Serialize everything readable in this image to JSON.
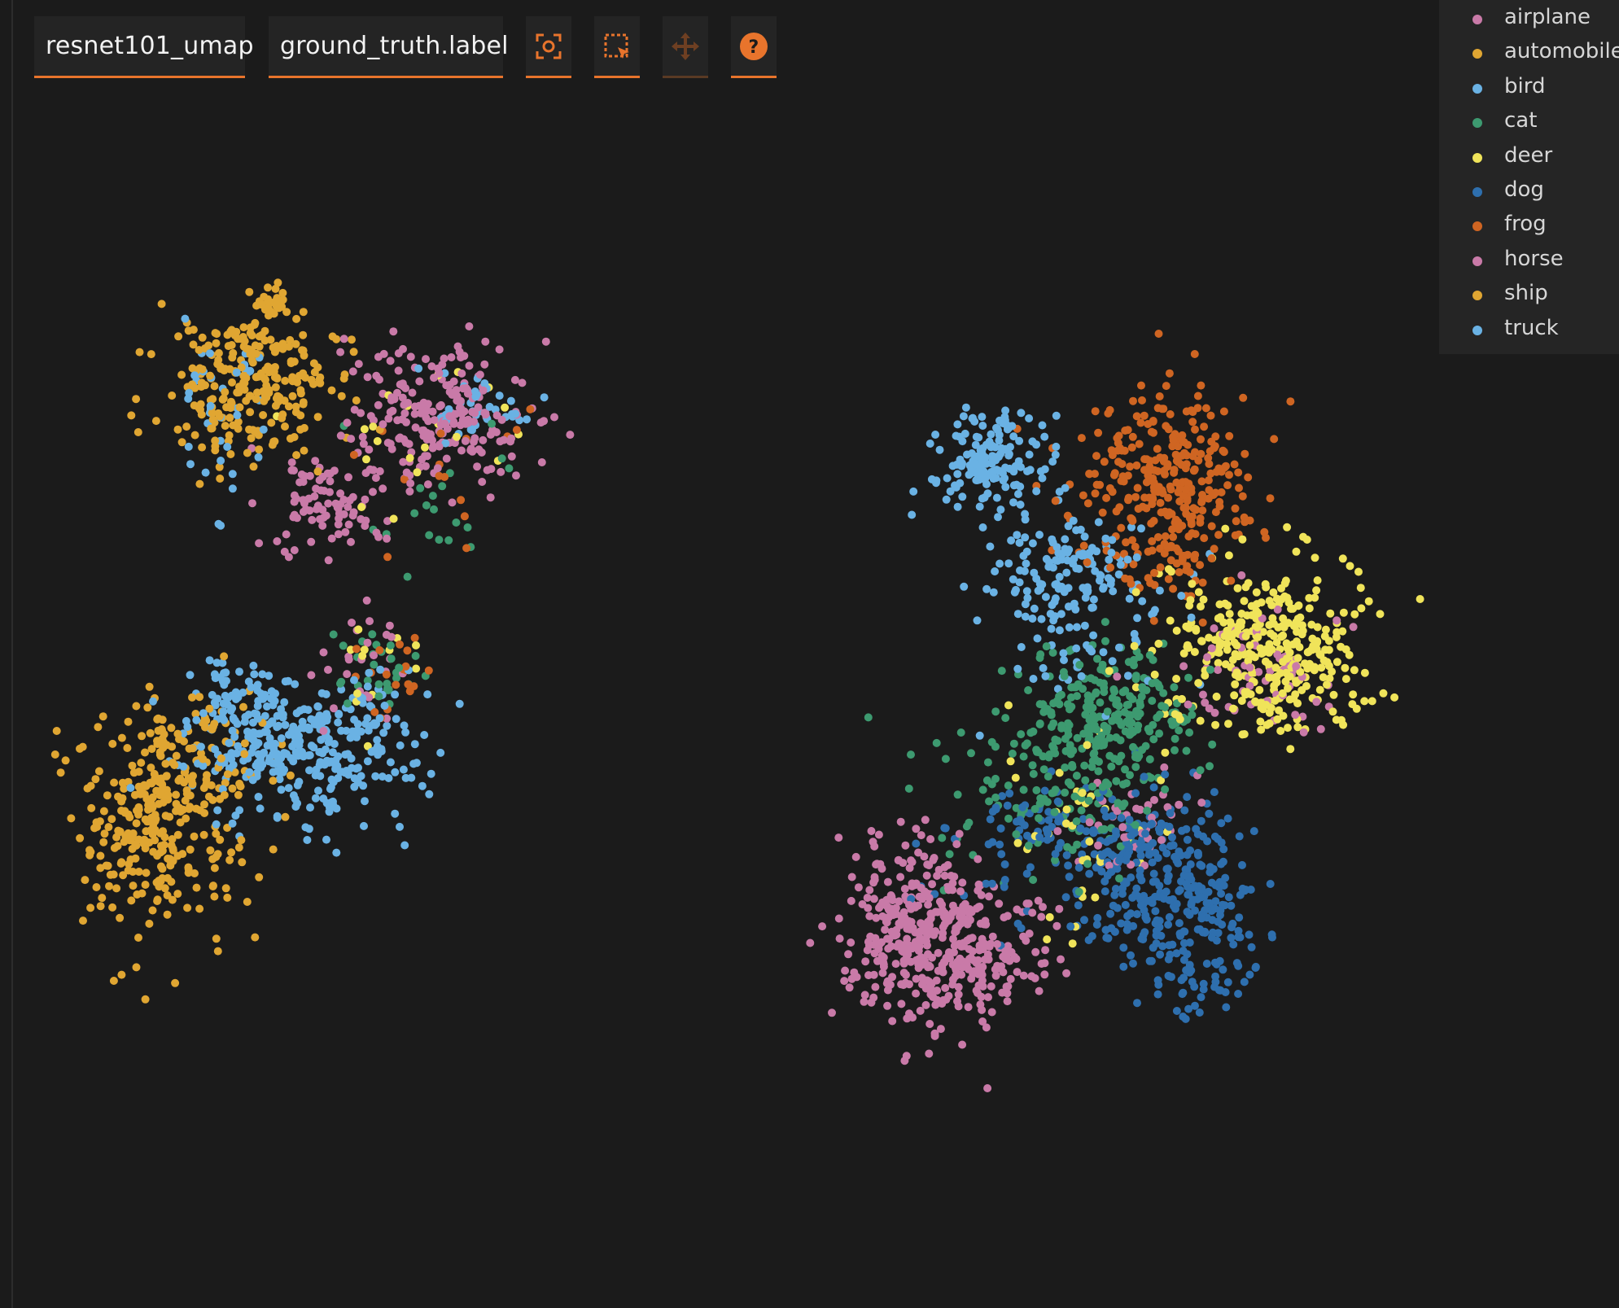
{
  "toolbar": {
    "embedding_select": "resnet101_umap",
    "color_by_select": "ground_truth.label",
    "tools": [
      {
        "name": "fit-view-icon",
        "active": true
      },
      {
        "name": "lasso-select-icon",
        "active": true
      },
      {
        "name": "pan-icon",
        "active": false
      },
      {
        "name": "help-icon",
        "active": true
      }
    ]
  },
  "colors": {
    "accent": "#e8742c",
    "background": "#1b1b1b"
  },
  "chart_data": {
    "type": "scatter",
    "title": "",
    "xlabel": "",
    "ylabel": "",
    "legend_position": "top-right",
    "grid": false,
    "series": [
      {
        "name": "airplane",
        "color": "#c97aa8"
      },
      {
        "name": "automobile",
        "color": "#e0a632"
      },
      {
        "name": "bird",
        "color": "#6ab2e4"
      },
      {
        "name": "cat",
        "color": "#3d9a70"
      },
      {
        "name": "deer",
        "color": "#f0e45a"
      },
      {
        "name": "dog",
        "color": "#2e6fae"
      },
      {
        "name": "frog",
        "color": "#cf6522"
      },
      {
        "name": "horse",
        "color": "#c97aa8"
      },
      {
        "name": "ship",
        "color": "#e0a632"
      },
      {
        "name": "truck",
        "color": "#6ab2e4"
      }
    ]
  }
}
